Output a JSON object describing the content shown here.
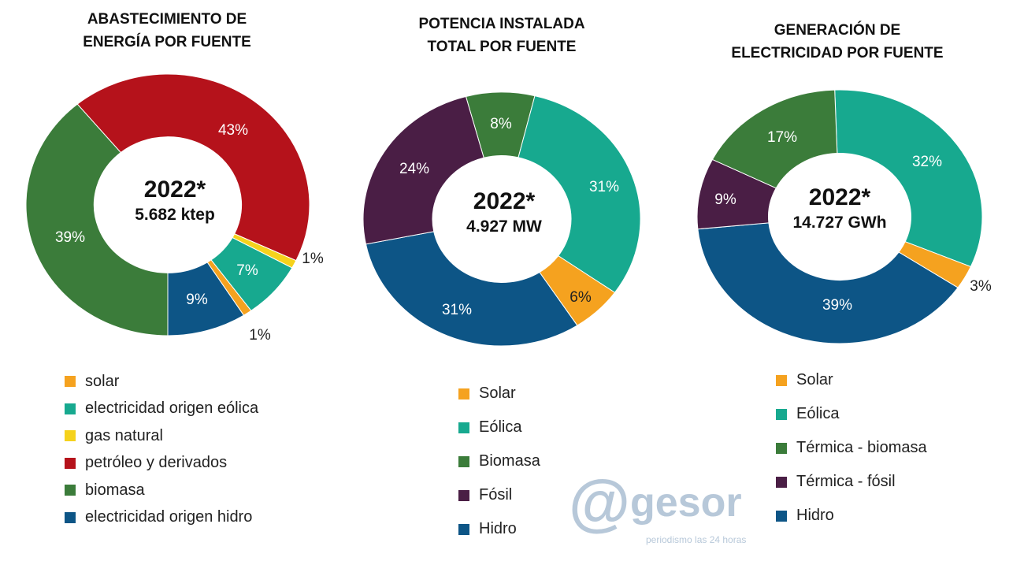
{
  "colors": {
    "solar": "#f5a21f",
    "eolica": "#17a98f",
    "gas": "#f5d21c",
    "petroleo": "#b5121b",
    "biomasa": "#3b7c3a",
    "fosil": "#4a1e45",
    "hidro": "#0d5586"
  },
  "chart_data": [
    {
      "type": "pie",
      "title": "ABASTECIMIENTO DE ENERGÍA POR FUENTE",
      "title_lines": [
        "ABASTECIMIENTO DE",
        "ENERGÍA POR FUENTE"
      ],
      "center_year": "2022*",
      "center_value": "5.682 ktep",
      "categories": [
        "solar",
        "electricidad origen eólica",
        "gas natural",
        "petróleo y derivados",
        "biomasa",
        "electricidad origen hidro"
      ],
      "values": [
        1,
        7,
        1,
        43,
        39,
        9
      ],
      "labels": [
        "1%",
        "7%",
        "1%",
        "43%",
        "39%",
        "9%"
      ],
      "unit": "%",
      "legend": "bottom"
    },
    {
      "type": "pie",
      "title": "POTENCIA INSTALADA TOTAL POR FUENTE",
      "title_lines": [
        "POTENCIA INSTALADA",
        "TOTAL POR FUENTE"
      ],
      "center_year": "2022*",
      "center_value": "4.927 MW",
      "categories": [
        "Solar",
        "Eólica",
        "Biomasa",
        "Fósil",
        "Hidro"
      ],
      "values": [
        6,
        31,
        8,
        24,
        31
      ],
      "labels": [
        "6%",
        "31%",
        "8%",
        "24%",
        "31%"
      ],
      "unit": "%",
      "legend": "bottom"
    },
    {
      "type": "pie",
      "title": "GENERACIÓN DE ELECTRICIDAD POR FUENTE",
      "title_lines": [
        "GENERACIÓN DE",
        "ELECTRICIDAD POR FUENTE"
      ],
      "center_year": "2022*",
      "center_value": "14.727 GWh",
      "categories": [
        "Solar",
        "Eólica",
        "Térmica - biomasa",
        "Térmica - fósil",
        "Hidro"
      ],
      "values": [
        3,
        32,
        17,
        9,
        39
      ],
      "labels": [
        "3%",
        "32%",
        "17%",
        "9%",
        "39%"
      ],
      "unit": "%",
      "legend": "bottom"
    }
  ],
  "watermark": {
    "logo": "@gesor",
    "slogan": "periodismo las 24 horas"
  }
}
